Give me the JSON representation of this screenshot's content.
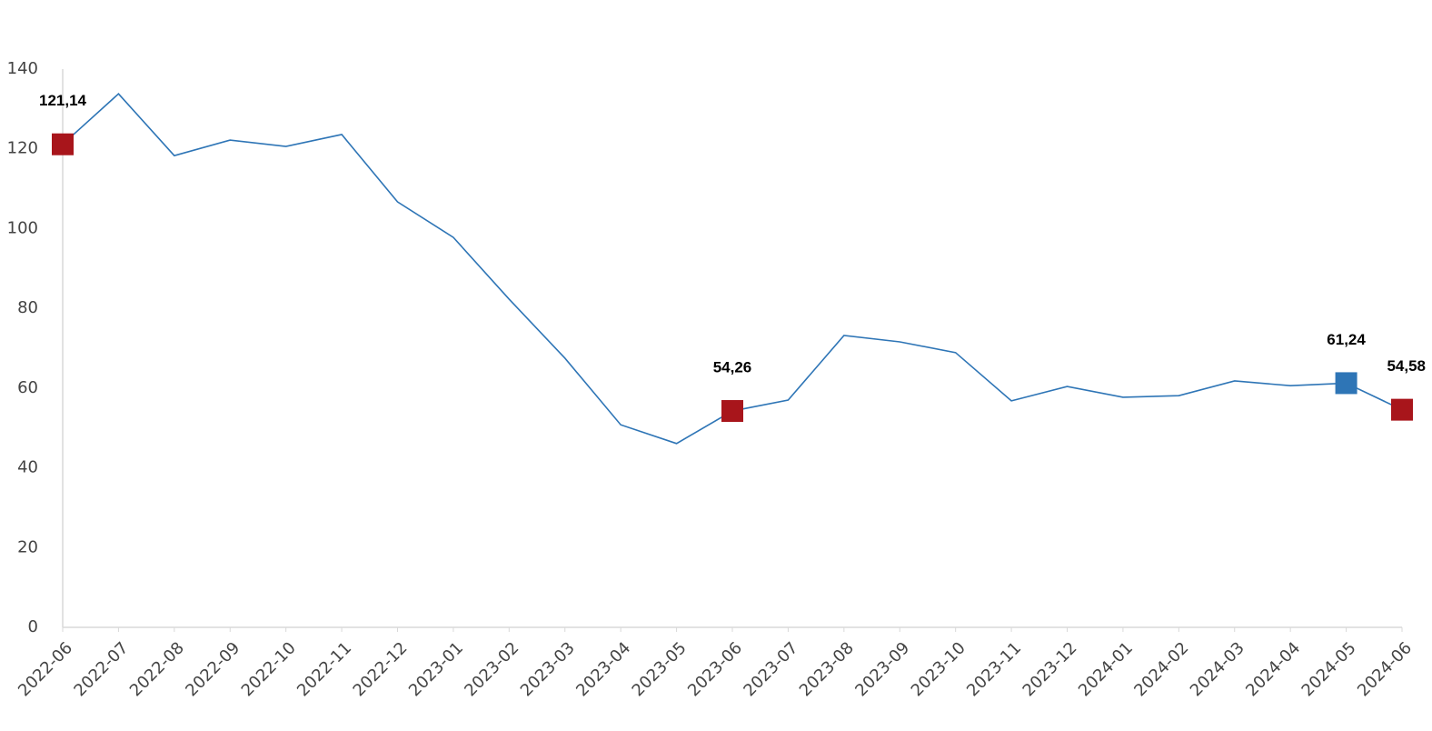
{
  "chart_data": {
    "type": "line",
    "categories": [
      "2022-06",
      "2022-07",
      "2022-08",
      "2022-09",
      "2022-10",
      "2022-11",
      "2022-12",
      "2023-01",
      "2023-02",
      "2023-03",
      "2023-04",
      "2023-05",
      "2023-06",
      "2023-07",
      "2023-08",
      "2023-09",
      "2023-10",
      "2023-11",
      "2023-12",
      "2024-01",
      "2024-02",
      "2024-03",
      "2024-04",
      "2024-05",
      "2024-06"
    ],
    "series": [
      {
        "color": "#2e75b6",
        "values": [
          121.14,
          133.8,
          118.3,
          122.2,
          120.6,
          123.6,
          106.7,
          97.8,
          82.3,
          67.5,
          50.8,
          46.1,
          54.26,
          57.0,
          73.2,
          71.6,
          68.9,
          56.8,
          60.4,
          57.7,
          58.1,
          61.8,
          60.6,
          61.24,
          54.58
        ],
        "value_labels": [
          "121,14",
          null,
          null,
          null,
          null,
          null,
          null,
          null,
          null,
          null,
          null,
          null,
          "54,26",
          null,
          null,
          null,
          null,
          null,
          null,
          null,
          null,
          null,
          null,
          "61,24",
          "54,58"
        ],
        "marker_colors": [
          "#a8151b",
          null,
          null,
          null,
          null,
          null,
          null,
          null,
          null,
          null,
          null,
          null,
          "#a8151b",
          null,
          null,
          null,
          null,
          null,
          null,
          null,
          null,
          null,
          null,
          "#2e75b6",
          "#a8151b"
        ]
      }
    ],
    "ylim": [
      0,
      140
    ],
    "yticks": [
      0,
      20,
      40,
      60,
      80,
      100,
      120,
      140
    ],
    "grid": false
  }
}
